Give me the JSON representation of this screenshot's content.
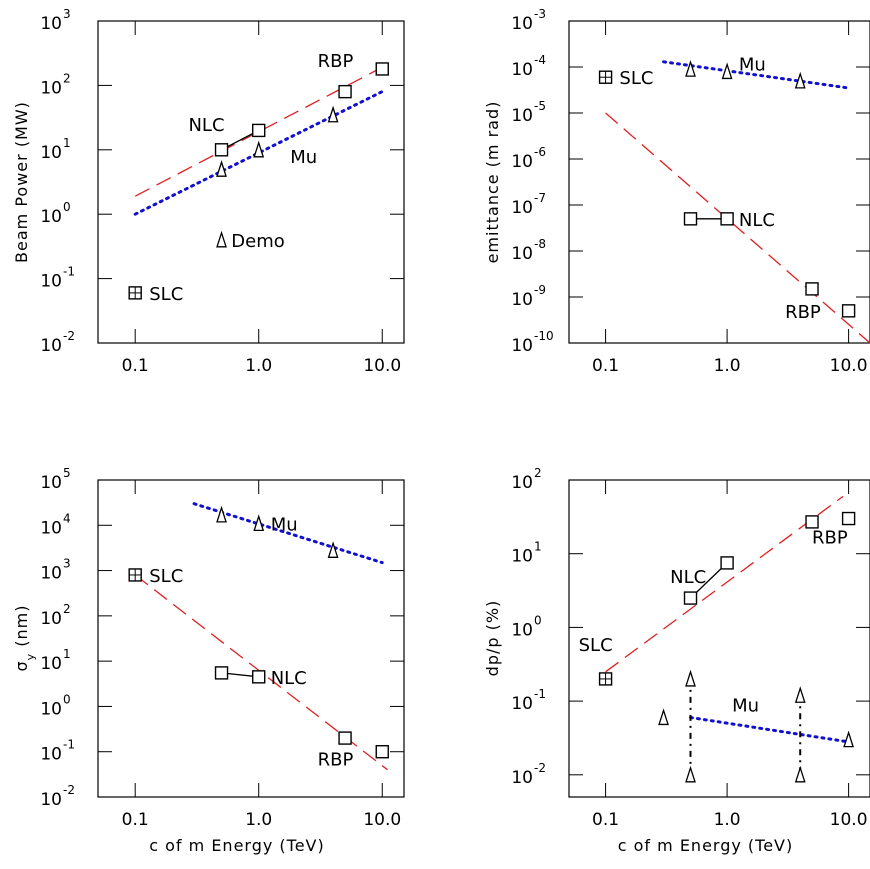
{
  "colors": {
    "fit": "#e02020",
    "muon": "#1010d0",
    "axes": "#000000"
  },
  "chart_data": [
    {
      "type": "scatter",
      "yscale": "log",
      "xscale": "log",
      "ylabel": "Beam Power (MW)",
      "xlabel": "",
      "xlim": [
        0.05,
        15
      ],
      "ylim": [
        0.01,
        1000
      ],
      "xticks": [
        "0.1",
        "1.0",
        "10.0"
      ],
      "yticks": [
        "10^3",
        "10^2",
        "10^1",
        "10^0",
        "10^-1",
        "10^-2"
      ],
      "series": [
        {
          "name": "SLC",
          "marker": "boxplus",
          "points": [
            [
              0.1,
              0.06
            ]
          ]
        },
        {
          "name": "NLC",
          "marker": "square",
          "points": [
            [
              0.5,
              10
            ],
            [
              1.0,
              20
            ]
          ]
        },
        {
          "name": "RBP",
          "marker": "square",
          "points": [
            [
              5.0,
              80
            ],
            [
              10.0,
              180
            ]
          ]
        },
        {
          "name": "Mu",
          "marker": "triangle",
          "points": [
            [
              0.5,
              5
            ],
            [
              1.0,
              10
            ],
            [
              4.0,
              35
            ]
          ]
        },
        {
          "name": "Demo",
          "marker": "triangle",
          "points": [
            [
              0.5,
              0.4
            ]
          ]
        }
      ],
      "lines": [
        {
          "style": "dashed",
          "color": "fit",
          "points": [
            [
              0.1,
              1.9
            ],
            [
              11,
              210
            ]
          ]
        },
        {
          "style": "dotted",
          "color": "muon",
          "points": [
            [
              0.1,
              1.0
            ],
            [
              10,
              80
            ]
          ]
        },
        {
          "style": "solid",
          "color": "axes",
          "points": [
            [
              0.5,
              10
            ],
            [
              1.0,
              20
            ]
          ]
        }
      ],
      "labels": [
        {
          "text": "RBP",
          "at": [
            3.0,
            250
          ]
        },
        {
          "text": "NLC",
          "at": [
            0.27,
            25
          ]
        },
        {
          "text": "Mu",
          "at": [
            1.8,
            8
          ]
        },
        {
          "text": "Demo",
          "at": [
            0.6,
            0.4
          ]
        },
        {
          "text": "SLC",
          "at": [
            0.13,
            0.06
          ]
        }
      ]
    },
    {
      "type": "scatter",
      "yscale": "log",
      "xscale": "log",
      "ylabel": "emittance (m rad)",
      "xlabel": "",
      "xlim": [
        0.05,
        15
      ],
      "ylim": [
        1e-10,
        0.001
      ],
      "xticks": [
        "0.1",
        "1.0",
        "10.0"
      ],
      "yticks": [
        "10^-3",
        "10^-4",
        "10^-5",
        "10^-6",
        "10^-7",
        "10^-8",
        "10^-9",
        "10^-10"
      ],
      "series": [
        {
          "name": "SLC",
          "marker": "boxplus",
          "points": [
            [
              0.1,
              6e-05
            ]
          ]
        },
        {
          "name": "NLC",
          "marker": "square",
          "points": [
            [
              0.5,
              5e-08
            ],
            [
              1.0,
              5e-08
            ]
          ]
        },
        {
          "name": "RBP",
          "marker": "square",
          "points": [
            [
              5.0,
              1.5e-09
            ],
            [
              10.0,
              5e-10
            ]
          ]
        },
        {
          "name": "Mu",
          "marker": "triangle",
          "points": [
            [
              0.5,
              9e-05
            ],
            [
              1.0,
              8e-05
            ],
            [
              4.0,
              5e-05
            ]
          ]
        }
      ],
      "lines": [
        {
          "style": "dashed",
          "color": "fit",
          "points": [
            [
              0.1,
              1e-05
            ],
            [
              15,
              1e-10
            ]
          ]
        },
        {
          "style": "dotted",
          "color": "muon",
          "points": [
            [
              0.3,
              0.00013
            ],
            [
              10,
              3.5e-05
            ]
          ]
        },
        {
          "style": "solid",
          "color": "axes",
          "points": [
            [
              0.5,
              5e-08
            ],
            [
              1.0,
              5e-08
            ]
          ]
        }
      ],
      "labels": [
        {
          "text": "Mu",
          "at": [
            1.25,
            0.00012
          ]
        },
        {
          "text": "SLC",
          "at": [
            0.13,
            6e-05
          ]
        },
        {
          "text": "NLC",
          "at": [
            1.25,
            5e-08
          ]
        },
        {
          "text": "RBP",
          "at": [
            3.0,
            5e-10
          ]
        }
      ]
    },
    {
      "type": "scatter",
      "yscale": "log",
      "xscale": "log",
      "ylabel": "σy (nm)",
      "xlabel": "c of m Energy (TeV)",
      "xlim": [
        0.05,
        15
      ],
      "ylim": [
        0.01,
        100000
      ],
      "xticks": [
        "0.1",
        "1.0",
        "10.0"
      ],
      "yticks": [
        "10^5",
        "10^4",
        "10^3",
        "10^2",
        "10^1",
        "10^0",
        "10^-1",
        "10^-2"
      ],
      "series": [
        {
          "name": "SLC",
          "marker": "boxplus",
          "points": [
            [
              0.1,
              800
            ]
          ]
        },
        {
          "name": "NLC",
          "marker": "square",
          "points": [
            [
              0.5,
              5.5
            ],
            [
              1.0,
              4.5
            ]
          ]
        },
        {
          "name": "RBP",
          "marker": "square",
          "points": [
            [
              5.0,
              0.2
            ],
            [
              10.0,
              0.1
            ]
          ]
        },
        {
          "name": "Mu",
          "marker": "triangle",
          "points": [
            [
              0.5,
              17000
            ],
            [
              1.0,
              11000
            ],
            [
              4.0,
              2800
            ]
          ]
        }
      ],
      "lines": [
        {
          "style": "dashed",
          "color": "fit",
          "points": [
            [
              0.1,
              800
            ],
            [
              11,
              0.04
            ]
          ]
        },
        {
          "style": "dotted",
          "color": "muon",
          "points": [
            [
              0.3,
              30000
            ],
            [
              10,
              1500
            ]
          ]
        },
        {
          "style": "solid",
          "color": "axes",
          "points": [
            [
              0.5,
              5.5
            ],
            [
              1.0,
              4.5
            ]
          ]
        }
      ],
      "labels": [
        {
          "text": "Mu",
          "at": [
            1.25,
            11000
          ]
        },
        {
          "text": "SLC",
          "at": [
            0.13,
            800
          ]
        },
        {
          "text": "NLC",
          "at": [
            1.25,
            4.5
          ]
        },
        {
          "text": "RBP",
          "at": [
            3.0,
            0.07
          ]
        }
      ]
    },
    {
      "type": "scatter",
      "yscale": "log",
      "xscale": "log",
      "ylabel": "dp/p (%)",
      "xlabel": "c of m Energy (TeV)",
      "xlim": [
        0.05,
        15
      ],
      "ylim": [
        0.005,
        100
      ],
      "xticks": [
        "0.1",
        "1.0",
        "10.0"
      ],
      "yticks": [
        "10^2",
        "10^1",
        "10^0",
        "10^-1",
        "10^-2"
      ],
      "series": [
        {
          "name": "SLC",
          "marker": "boxplus",
          "points": [
            [
              0.1,
              0.2
            ]
          ]
        },
        {
          "name": "NLC",
          "marker": "square",
          "points": [
            [
              0.5,
              2.5
            ],
            [
              1.0,
              7.5
            ]
          ]
        },
        {
          "name": "RBP",
          "marker": "square",
          "points": [
            [
              5.0,
              27
            ],
            [
              10.0,
              30
            ]
          ]
        },
        {
          "name": "Mu",
          "marker": "triangle",
          "points": [
            [
              0.3,
              0.06
            ],
            [
              0.5,
              0.2
            ],
            [
              0.5,
              0.01
            ],
            [
              4.0,
              0.12
            ],
            [
              4.0,
              0.01
            ],
            [
              10.0,
              0.03
            ]
          ]
        }
      ],
      "lines": [
        {
          "style": "dashed",
          "color": "fit",
          "points": [
            [
              0.1,
              0.25
            ],
            [
              9,
              60
            ]
          ]
        },
        {
          "style": "dotted",
          "color": "muon",
          "points": [
            [
              0.5,
              0.06
            ],
            [
              10,
              0.028
            ]
          ]
        },
        {
          "style": "solid",
          "color": "axes",
          "points": [
            [
              0.5,
              2.5
            ],
            [
              1.0,
              7.5
            ]
          ]
        },
        {
          "style": "dashdot",
          "color": "axes",
          "points": [
            [
              0.5,
              0.2
            ],
            [
              0.5,
              0.01
            ]
          ]
        },
        {
          "style": "dashdot",
          "color": "axes",
          "points": [
            [
              4.0,
              0.12
            ],
            [
              4.0,
              0.01
            ]
          ]
        }
      ],
      "labels": [
        {
          "text": "SLC",
          "at": [
            0.06,
            0.6
          ]
        },
        {
          "text": "NLC",
          "at": [
            0.34,
            5
          ]
        },
        {
          "text": "RBP",
          "at": [
            5.0,
            17
          ]
        },
        {
          "text": "Mu",
          "at": [
            1.1,
            0.09
          ]
        }
      ]
    }
  ]
}
